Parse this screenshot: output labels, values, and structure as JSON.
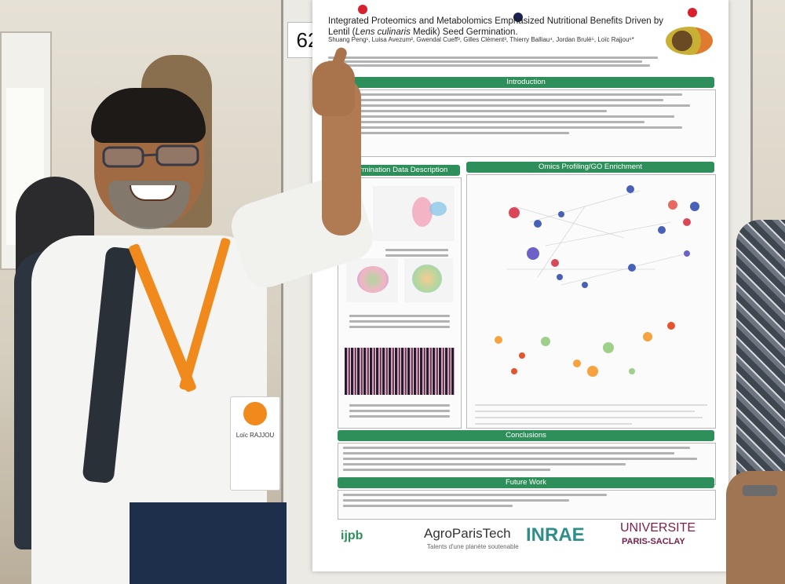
{
  "scene": {
    "poster_number": "62",
    "poster": {
      "title_line1": "Integrated Proteomics and Metabolomics Emphasized Nutritional Benefits Driven by",
      "title_line2_pre": "Lentil (",
      "title_line2_italic": "Lens culinaris",
      "title_line2_post": " Medik) Seed Germination.",
      "authors": "Shuang Peng¹, Luisa Avezum², Gwendal Cueff³, Gilles Clément³, Thierry Balliau⁴, Jordan Brulé⁵, Loïc Rajjou⁶*",
      "sections": {
        "introduction": "Introduction",
        "germination": "Germination Data Description",
        "omics": "Omics Profiling/GO Enrichment",
        "conclusions": "Conclusions",
        "future": "Future Work"
      },
      "logos": {
        "ijpb": "ijpb",
        "agro": "AgroParisTech",
        "agro_sub": "Talents d'une planète soutenable",
        "inrae": "INRAE",
        "univ": "UNIVERSITE",
        "univ_sub": "PARIS-SACLAY"
      }
    },
    "badge_name": "Loïc RAJJOU",
    "colors": {
      "section_green": "#2f8f5b",
      "lanyard_orange": "#f08a1c",
      "pin_red": "#d8202f",
      "pin_navy": "#1c2350"
    }
  }
}
